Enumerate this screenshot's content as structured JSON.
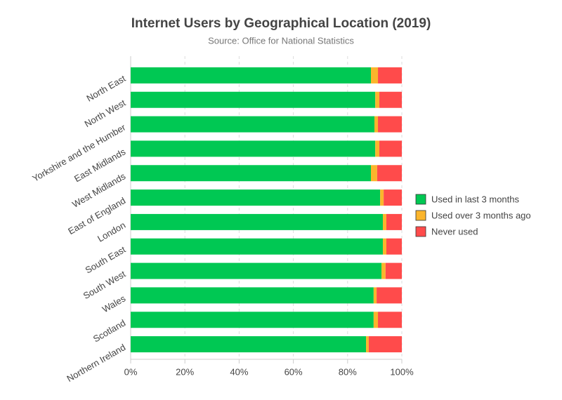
{
  "chart_data": {
    "type": "stacked_barh",
    "title": "Internet Users by Geographical Location (2019)",
    "subtitle": "Source: Office for National Statistics",
    "categories": [
      "North East",
      "North West",
      "Yorkshire and the Humber",
      "East Midlands",
      "West Midlands",
      "East of England",
      "London",
      "South East",
      "South West",
      "Wales",
      "Scotland",
      "Northern Ireland"
    ],
    "series": [
      {
        "name": "Used in last 3 months",
        "color": "#00c853",
        "values": [
          88.6,
          90.2,
          89.9,
          90.2,
          88.6,
          92.0,
          93.0,
          93.0,
          92.5,
          89.6,
          89.6,
          86.8
        ]
      },
      {
        "name": "Used over 3 months ago",
        "color": "#fbb52c",
        "values": [
          2.6,
          1.5,
          1.3,
          1.5,
          2.3,
          1.3,
          1.3,
          1.3,
          1.5,
          1.1,
          1.6,
          1.0
        ]
      },
      {
        "name": "Never used",
        "color": "#ff4b4b",
        "values": [
          8.8,
          8.3,
          8.8,
          8.3,
          9.1,
          6.7,
          5.7,
          5.7,
          6.0,
          9.3,
          8.8,
          12.2
        ]
      }
    ],
    "xlim": [
      0,
      100
    ],
    "xticks": [
      {
        "value": 0,
        "label": "0%"
      },
      {
        "value": 20,
        "label": "20%"
      },
      {
        "value": 40,
        "label": "40%"
      },
      {
        "value": 60,
        "label": "60%"
      },
      {
        "value": 80,
        "label": "80%"
      },
      {
        "value": 100,
        "label": "100%"
      }
    ],
    "grid": true,
    "legend": "right"
  }
}
